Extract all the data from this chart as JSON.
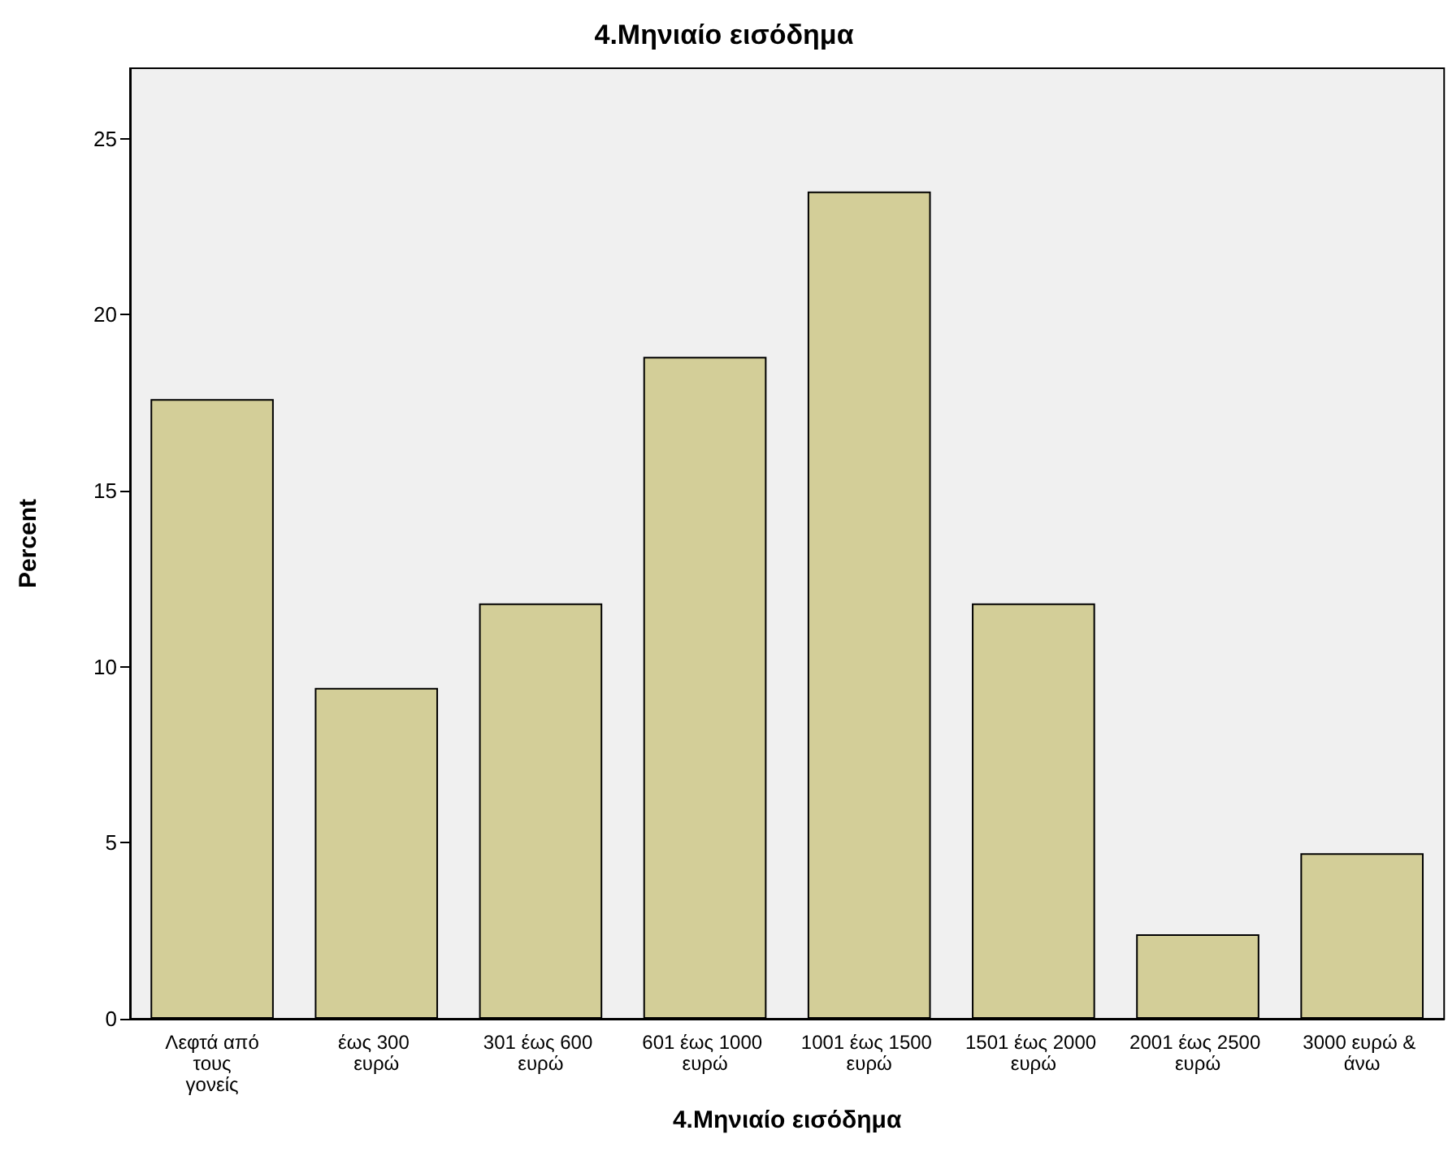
{
  "chart_data": {
    "type": "bar",
    "title": "4.Μηνιαίο εισόδημα",
    "xlabel": "4.Μηνιαίο εισόδημα",
    "ylabel": "Percent",
    "categories": [
      "Λεφτά από τους γονείς",
      "έως 300 ευρώ",
      "301 έως 600 ευρώ",
      "601 έως 1000 ευρώ",
      "1001 έως 1500 ευρώ",
      "1501 έως 2000 ευρώ",
      "2001 έως 2500 ευρώ",
      "3000 ευρώ & άνω"
    ],
    "values": [
      17.6,
      9.4,
      11.8,
      18.8,
      23.5,
      11.8,
      2.4,
      4.7
    ],
    "color": "#d3ce98",
    "ylim": [
      0,
      27
    ],
    "yticks": [
      0,
      5,
      10,
      15,
      20,
      25
    ],
    "grid": false
  }
}
